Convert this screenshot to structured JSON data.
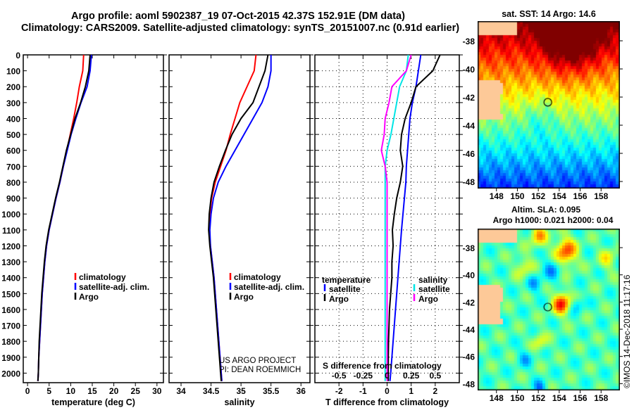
{
  "title_line1": "Argo profile: aoml 5902387_19 07-Oct-2015 42.37S 152.91E (DM data)",
  "title_line2": "Climatology: CARS2009. Satellite-adjusted climatology: synTS_20151007.nc (0.91d earlier)",
  "colors": {
    "climatology": "#ff0000",
    "satellite": "#0000ff",
    "argo": "#000000",
    "s_satellite": "#00e5e5",
    "s_argo": "#ff00ff",
    "land": "#fdc998"
  },
  "chart_data": [
    {
      "type": "line",
      "name": "temperature",
      "xlabel": "temperature (deg C)",
      "xlim": [
        -1,
        31.5
      ],
      "ylim": [
        2060,
        0
      ],
      "xticks": [
        0,
        5,
        10,
        15,
        20,
        25,
        30
      ],
      "yticks": [
        0,
        100,
        200,
        300,
        400,
        500,
        600,
        700,
        800,
        900,
        1000,
        1100,
        1200,
        1300,
        1400,
        1500,
        1600,
        1700,
        1800,
        1900,
        2000
      ],
      "depth": [
        0,
        100,
        200,
        300,
        400,
        500,
        600,
        700,
        800,
        900,
        1000,
        1100,
        1200,
        1300,
        1400,
        1500,
        1600,
        1700,
        1800,
        1900,
        2000,
        2050
      ],
      "series": [
        {
          "name": "climatology",
          "color": "#ff0000",
          "values": [
            13.0,
            12.8,
            12.0,
            11.4,
            10.7,
            9.9,
            9.1,
            8.3,
            7.5,
            6.6,
            5.8,
            5.0,
            4.4,
            4.0,
            3.7,
            3.4,
            3.2,
            3.0,
            2.8,
            2.6,
            2.5,
            2.4
          ]
        },
        {
          "name": "satellite-adj. clim.",
          "color": "#0000ff",
          "values": [
            14.8,
            14.5,
            13.8,
            12.4,
            11.2,
            10.1,
            9.2,
            8.3,
            7.5,
            6.6,
            5.8,
            5.0,
            4.4,
            4.0,
            3.7,
            3.4,
            3.2,
            3.0,
            2.8,
            2.6,
            2.5,
            2.4
          ]
        },
        {
          "name": "Argo",
          "color": "#000000",
          "values": [
            14.5,
            14.2,
            13.4,
            12.3,
            11.0,
            10.0,
            9.0,
            8.2,
            7.4,
            6.5,
            5.7,
            4.9,
            4.3,
            3.9,
            3.6,
            3.3,
            3.1,
            2.9,
            2.7,
            2.6,
            2.5,
            2.4
          ]
        }
      ],
      "legend": [
        "climatology",
        "satellite-adj. clim.",
        "Argo"
      ],
      "legend_placement": "lower-middle"
    },
    {
      "type": "line",
      "name": "salinity",
      "xlabel": "salinity",
      "xlim": [
        33.8,
        36.15
      ],
      "ylim": [
        2060,
        0
      ],
      "xticks": [
        34,
        34.5,
        35,
        35.5,
        36
      ],
      "depth": [
        0,
        100,
        200,
        300,
        400,
        500,
        600,
        700,
        800,
        900,
        1000,
        1100,
        1200,
        1300,
        1400,
        1500,
        1600,
        1700,
        1800,
        1900,
        2000,
        2050
      ],
      "series": [
        {
          "name": "climatology",
          "color": "#ff0000",
          "values": [
            35.25,
            35.22,
            35.1,
            34.98,
            34.9,
            34.82,
            34.75,
            34.66,
            34.57,
            34.51,
            34.48,
            34.47,
            34.49,
            34.52,
            34.55,
            34.57,
            34.59,
            34.61,
            34.63,
            34.65,
            34.67,
            34.68
          ]
        },
        {
          "name": "satellite-adj. clim.",
          "color": "#0000ff",
          "values": [
            35.5,
            35.5,
            35.45,
            35.35,
            35.2,
            35.05,
            34.9,
            34.75,
            34.62,
            34.54,
            34.5,
            34.48,
            34.49,
            34.52,
            34.55,
            34.57,
            34.59,
            34.61,
            34.63,
            34.65,
            34.67,
            34.68
          ]
        },
        {
          "name": "Argo",
          "color": "#000000",
          "values": [
            35.45,
            35.4,
            35.3,
            35.2,
            35.0,
            34.85,
            34.74,
            34.64,
            34.55,
            34.5,
            34.47,
            34.46,
            34.48,
            34.51,
            34.54,
            34.56,
            34.58,
            34.6,
            34.62,
            34.64,
            34.66,
            34.67
          ]
        }
      ],
      "legend": [
        "climatology",
        "satellite-adj. clim.",
        "Argo"
      ],
      "legend_placement": "lower-middle",
      "annotation": [
        "US ARGO PROJECT",
        "PI: DEAN ROEMMICH"
      ]
    },
    {
      "type": "line",
      "name": "difference",
      "xlabel": "T difference from climatology",
      "x2label": "S difference from climatology",
      "xlim": [
        -3,
        3
      ],
      "ylim": [
        2060,
        0
      ],
      "xticks": [
        -2,
        -1,
        0,
        1,
        2
      ],
      "x2ticks": [
        -0.5,
        -0.25,
        0,
        0.25,
        0.5
      ],
      "s_scale": 4,
      "depth": [
        0,
        100,
        200,
        300,
        400,
        500,
        600,
        700,
        800,
        900,
        1000,
        1100,
        1200,
        1300,
        1400,
        1500,
        1600,
        1700,
        1800,
        1900,
        2000,
        2050
      ],
      "series": [
        {
          "name": "temperature satellite",
          "axis": "T",
          "color": "#0000ff",
          "values": [
            1.4,
            1.3,
            1.2,
            1.05,
            0.95,
            0.9,
            0.85,
            0.8,
            0.78,
            0.72,
            0.66,
            0.6,
            0.55,
            0.5,
            0.45,
            0.4,
            0.35,
            0.3,
            0.25,
            0.2,
            0.15,
            0.12
          ]
        },
        {
          "name": "temperature Argo",
          "axis": "T",
          "color": "#000000",
          "values": [
            2.2,
            1.9,
            1.2,
            1.0,
            0.75,
            0.6,
            0.55,
            0.65,
            0.55,
            0.4,
            0.3,
            0.22,
            0.25,
            0.2,
            0.2,
            0.15,
            0.1,
            0.08,
            0.06,
            0.05,
            0.05,
            0.05
          ]
        },
        {
          "name": "salinity satellite",
          "axis": "S",
          "color": "#00e5e5",
          "values": [
            0.22,
            0.2,
            0.13,
            0.1,
            0.07,
            0.04,
            0.0,
            -0.02,
            -0.02,
            -0.02,
            -0.02,
            -0.02,
            -0.02,
            -0.02,
            -0.02,
            -0.02,
            -0.02,
            -0.02,
            -0.02,
            -0.02,
            -0.02,
            -0.02
          ]
        },
        {
          "name": "salinity Argo",
          "axis": "S",
          "color": "#ff00ff",
          "values": [
            0.25,
            0.2,
            0.05,
            0.02,
            -0.02,
            -0.03,
            -0.06,
            -0.02,
            0.0,
            0.0,
            0.0,
            0.0,
            0.0,
            0.0,
            0.0,
            0.0,
            0.0,
            0.0,
            0.0,
            0.0,
            0.0,
            0.0
          ]
        }
      ],
      "legend_t": {
        "title": "temperature",
        "items": [
          "satellite",
          "Argo"
        ]
      },
      "legend_s": {
        "title": "salinity",
        "items": [
          "satellite",
          "Argo"
        ]
      }
    },
    {
      "type": "heatmap",
      "name": "sst-map",
      "title": "sat. SST: 14 Argo: 14.6",
      "xlim": [
        146.2,
        159.8
      ],
      "ylim": [
        -48.5,
        -36.6
      ],
      "xticks": [
        148,
        150,
        152,
        154,
        156,
        158
      ],
      "yticks": [
        -38,
        -40,
        -42,
        -44,
        -46,
        -48
      ],
      "argo_position": [
        152.91,
        -42.37
      ]
    },
    {
      "type": "heatmap",
      "name": "sla-map",
      "title": "Altim. SLA: 0.095",
      "subtitle": "Argo h1000: 0.021 h2000: 0.04",
      "xlim": [
        146.2,
        159.8
      ],
      "ylim": [
        -48.5,
        -36.6
      ],
      "xticks": [
        148,
        150,
        152,
        154,
        156,
        158
      ],
      "yticks": [
        -38,
        -40,
        -42,
        -44,
        -46,
        -48
      ],
      "argo_position": [
        152.91,
        -42.37
      ],
      "credit": "©IMOS 14-Dec-2018 11:17:16"
    }
  ]
}
